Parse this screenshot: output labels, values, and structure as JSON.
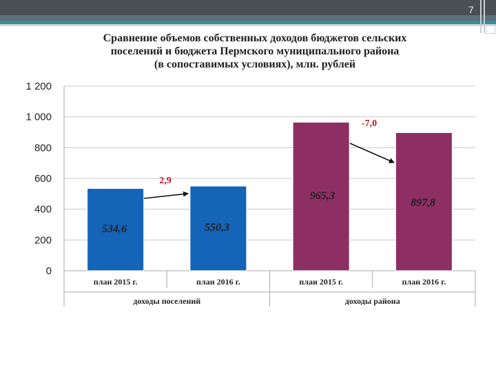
{
  "slide": {
    "page_number": "7",
    "title_lines": [
      "Сравнение объемов собственных доходов бюджетов сельских",
      "поселений и бюджета Пермского муниципального района",
      "(в сопоставимых условиях), млн. рублей"
    ]
  },
  "colors": {
    "settlements_bar": "#1464b8",
    "district_bar": "#8e2f64",
    "change_label": "#c0171f"
  },
  "chart_data": {
    "type": "bar",
    "title": "Сравнение объемов собственных доходов бюджетов сельских поселений и бюджета Пермского муниципального района (в сопоставимых условиях), млн. рублей",
    "ylim": [
      0,
      1200
    ],
    "yticks": [
      0,
      200,
      400,
      600,
      800,
      1000,
      1200
    ],
    "ytick_labels": [
      "0",
      "200",
      "400",
      "600",
      "800",
      "1 000",
      "1 200"
    ],
    "grid": true,
    "groups": [
      {
        "name": "доходы поселений",
        "categories": [
          "план  2015 г.",
          "план 2016 г."
        ],
        "values": [
          534.6,
          550.3
        ],
        "value_labels": [
          "534,6",
          "550,3"
        ],
        "change": 2.9,
        "change_label": "2,9"
      },
      {
        "name": "доходы района",
        "categories": [
          "план  2015 г.",
          "план 2016 г."
        ],
        "values": [
          965.3,
          897.8
        ],
        "value_labels": [
          "965,3",
          "897,8"
        ],
        "change": -7.0,
        "change_label": "-7,0"
      }
    ]
  }
}
